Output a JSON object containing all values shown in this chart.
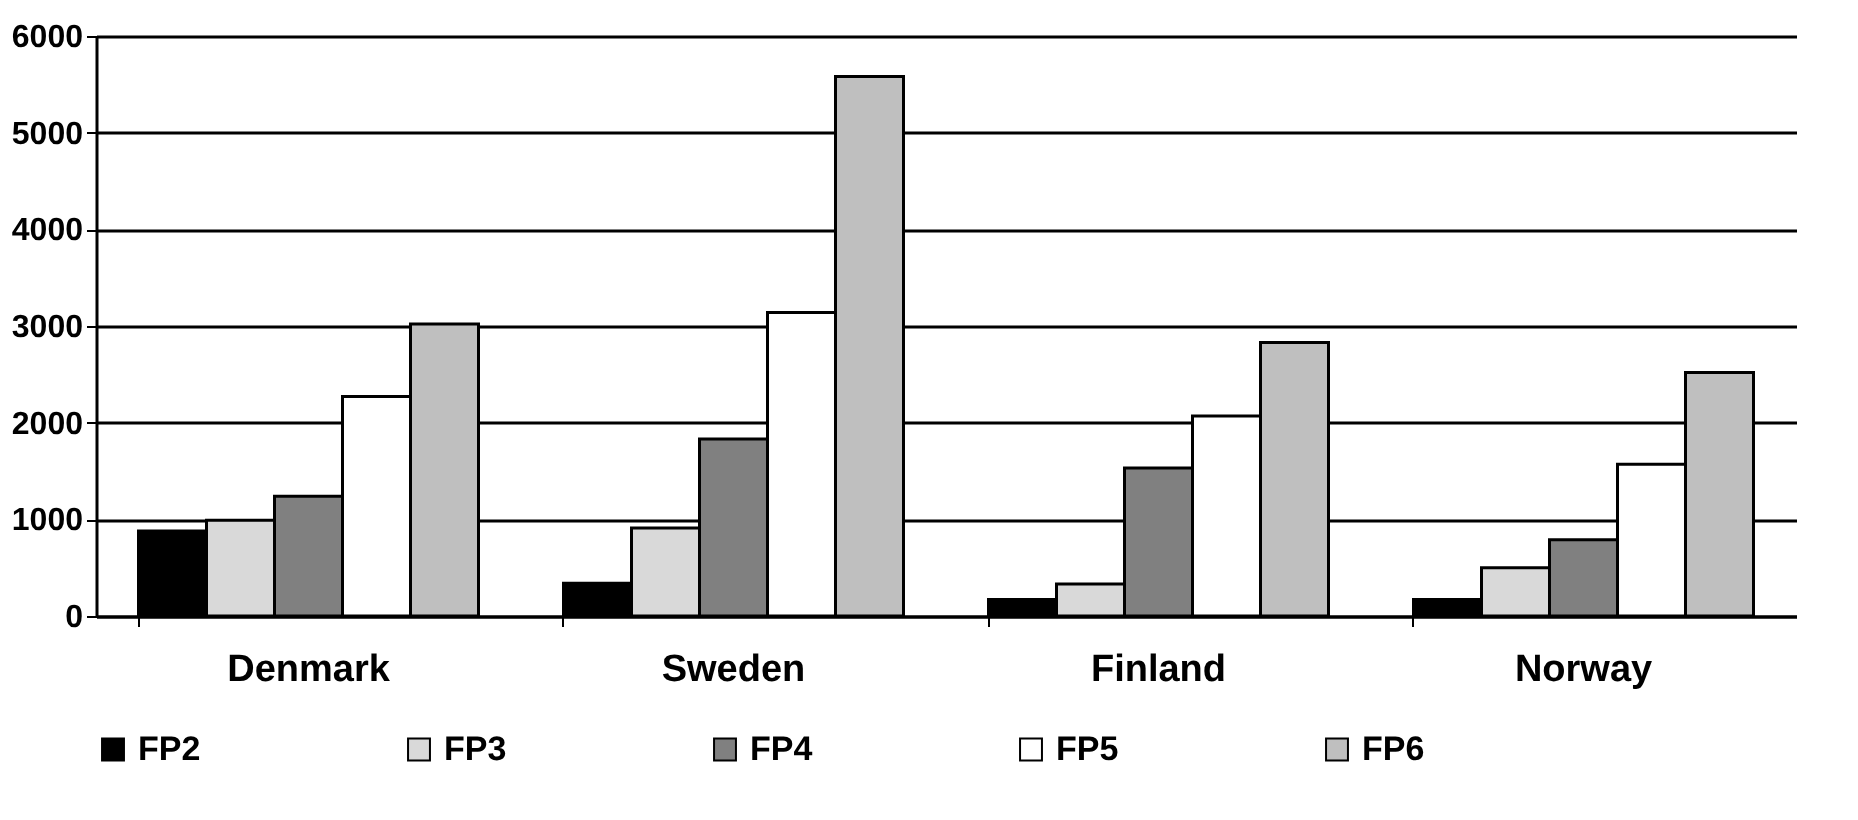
{
  "chart_data": {
    "type": "bar",
    "categories": [
      "Denmark",
      "Sweden",
      "Finland",
      "Norway"
    ],
    "series": [
      {
        "name": "FP2",
        "color": "#000000",
        "values": [
          880,
          340,
          170,
          170
        ]
      },
      {
        "name": "FP3",
        "color": "#d9d9d9",
        "values": [
          990,
          910,
          330,
          500
        ]
      },
      {
        "name": "FP4",
        "color": "#808080",
        "values": [
          1240,
          1830,
          1530,
          790
        ]
      },
      {
        "name": "FP5",
        "color": "#ffffff",
        "values": [
          2270,
          3140,
          2070,
          1570
        ]
      },
      {
        "name": "FP6",
        "color": "#bfbfbf",
        "values": [
          3020,
          5580,
          2830,
          2520
        ]
      }
    ],
    "ylim": [
      0,
      6000
    ],
    "yticks": [
      0,
      1000,
      2000,
      3000,
      4000,
      5000,
      6000
    ],
    "grid": "y",
    "legend": "bottom"
  }
}
